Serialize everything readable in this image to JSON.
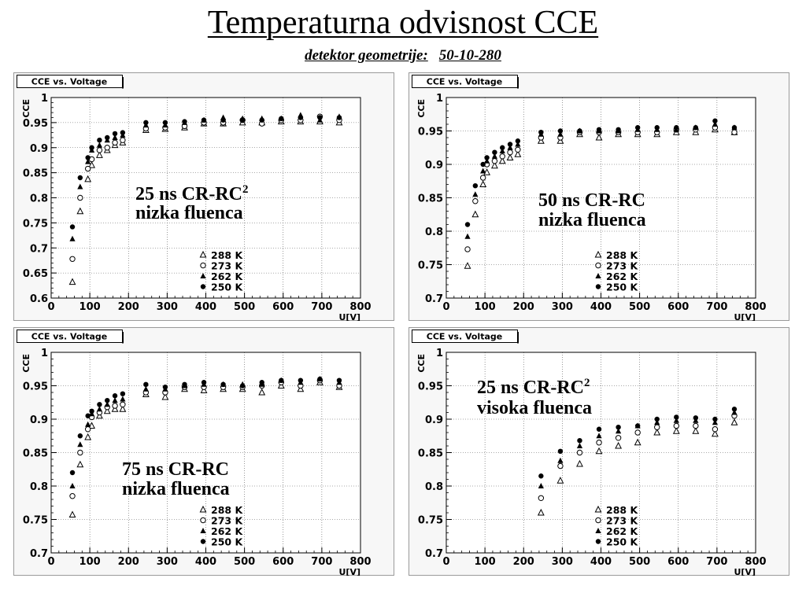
{
  "header": {
    "title": "Temperaturna odvisnost CCE",
    "subtitle_label": "detektor geometrije:",
    "subtitle_value": "50-10-280"
  },
  "chart_data": [
    {
      "type": "scatter",
      "title": "CCE vs. Voltage",
      "xlabel": "U[V]",
      "ylabel": "CCE",
      "xlim": [
        0,
        800
      ],
      "ylim": [
        0.6,
        1
      ],
      "xticks": [
        0,
        100,
        200,
        300,
        400,
        500,
        600,
        700,
        800
      ],
      "xtick_labels": [
        "0",
        "100",
        "200",
        "300",
        "400",
        "500",
        "600",
        "700",
        "800"
      ],
      "yticks": [
        0.6,
        0.65,
        0.7,
        0.75,
        0.8,
        0.85,
        0.9,
        0.95,
        1
      ],
      "ytick_labels": [
        "0.6",
        "0.65",
        "0.7",
        "0.75",
        "0.8",
        "0.85",
        "0.9",
        "0.95",
        "1"
      ],
      "grid": true,
      "legend_placement": "center-bottom",
      "annotation": [
        "25 ns CR-RC",
        "nizka fluenca"
      ],
      "annotation_sup": "2",
      "series": [
        {
          "name": "288 K",
          "marker": "triangle-open",
          "x": [
            55,
            75,
            95,
            105,
            125,
            145,
            165,
            185,
            245,
            295,
            345,
            395,
            445,
            495,
            545,
            595,
            645,
            695,
            745
          ],
          "y": [
            0.632,
            0.773,
            0.837,
            0.865,
            0.885,
            0.895,
            0.905,
            0.91,
            0.935,
            0.937,
            0.94,
            0.948,
            0.948,
            0.95,
            0.95,
            0.952,
            0.952,
            0.952,
            0.95
          ]
        },
        {
          "name": "273 K",
          "marker": "circle-open",
          "x": [
            55,
            75,
            95,
            105,
            125,
            145,
            165,
            185,
            245,
            295,
            345,
            395,
            445,
            495,
            545,
            595,
            645,
            695,
            745
          ],
          "y": [
            0.678,
            0.8,
            0.858,
            0.877,
            0.895,
            0.9,
            0.91,
            0.915,
            0.938,
            0.94,
            0.943,
            0.95,
            0.95,
            0.955,
            0.948,
            0.955,
            0.955,
            0.962,
            0.955
          ]
        },
        {
          "name": "262 K",
          "marker": "triangle-filled",
          "x": [
            55,
            75,
            95,
            105,
            125,
            145,
            165,
            185,
            245,
            295,
            345,
            395,
            445,
            495,
            545,
            595,
            645,
            695,
            745
          ],
          "y": [
            0.718,
            0.822,
            0.872,
            0.895,
            0.905,
            0.915,
            0.92,
            0.925,
            0.945,
            0.945,
            0.95,
            0.955,
            0.96,
            0.958,
            0.958,
            0.958,
            0.965,
            0.955,
            0.962
          ]
        },
        {
          "name": "250 K",
          "marker": "circle-filled",
          "x": [
            55,
            75,
            95,
            105,
            125,
            145,
            165,
            185,
            245,
            295,
            345,
            395,
            445,
            495,
            545,
            595,
            645,
            695,
            745
          ],
          "y": [
            0.742,
            0.84,
            0.88,
            0.9,
            0.915,
            0.92,
            0.928,
            0.93,
            0.95,
            0.95,
            0.952,
            0.955,
            0.955,
            0.955,
            0.955,
            0.958,
            0.96,
            0.96,
            0.96
          ]
        }
      ]
    },
    {
      "type": "scatter",
      "title": "CCE vs. Voltage",
      "xlabel": "U[V]",
      "ylabel": "CCE",
      "xlim": [
        0,
        800
      ],
      "ylim": [
        0.7,
        1
      ],
      "xticks": [
        0,
        100,
        200,
        300,
        400,
        500,
        600,
        700,
        800
      ],
      "xtick_labels": [
        "0",
        "100",
        "200",
        "300",
        "400",
        "500",
        "600",
        "700",
        "800"
      ],
      "yticks": [
        0.7,
        0.75,
        0.8,
        0.85,
        0.9,
        0.95,
        1
      ],
      "ytick_labels": [
        "0.7",
        "0.75",
        "0.8",
        "0.85",
        "0.9",
        "0.95",
        "1"
      ],
      "grid": true,
      "legend_placement": "center-bottom",
      "annotation": [
        "50 ns CR-RC",
        "nizka fluenca"
      ],
      "annotation_sup": "",
      "series": [
        {
          "name": "288 K",
          "marker": "triangle-open",
          "x": [
            55,
            75,
            95,
            105,
            125,
            145,
            165,
            185,
            245,
            295,
            345,
            395,
            445,
            495,
            545,
            595,
            645,
            695,
            745
          ],
          "y": [
            0.748,
            0.825,
            0.87,
            0.888,
            0.898,
            0.905,
            0.91,
            0.915,
            0.935,
            0.935,
            0.945,
            0.94,
            0.945,
            0.945,
            0.945,
            0.948,
            0.948,
            0.952,
            0.948
          ]
        },
        {
          "name": "273 K",
          "marker": "circle-open",
          "x": [
            55,
            75,
            95,
            105,
            125,
            145,
            165,
            185,
            245,
            295,
            345,
            395,
            445,
            495,
            545,
            595,
            645,
            695,
            745
          ],
          "y": [
            0.773,
            0.845,
            0.88,
            0.9,
            0.905,
            0.912,
            0.918,
            0.922,
            0.94,
            0.94,
            0.948,
            0.948,
            0.948,
            0.948,
            0.948,
            0.952,
            0.952,
            0.955,
            0.948
          ]
        },
        {
          "name": "262 K",
          "marker": "triangle-filled",
          "x": [
            55,
            75,
            95,
            105,
            125,
            145,
            165,
            185,
            245,
            295,
            345,
            395,
            445,
            495,
            545,
            595,
            645,
            695,
            745
          ],
          "y": [
            0.792,
            0.855,
            0.89,
            0.905,
            0.912,
            0.92,
            0.925,
            0.93,
            0.945,
            0.945,
            0.95,
            0.95,
            0.95,
            0.952,
            0.952,
            0.952,
            0.955,
            0.96,
            0.955
          ]
        },
        {
          "name": "250 K",
          "marker": "circle-filled",
          "x": [
            55,
            75,
            95,
            105,
            125,
            145,
            165,
            185,
            245,
            295,
            345,
            395,
            445,
            495,
            545,
            595,
            645,
            695,
            745
          ],
          "y": [
            0.81,
            0.868,
            0.9,
            0.91,
            0.918,
            0.925,
            0.93,
            0.935,
            0.948,
            0.95,
            0.95,
            0.952,
            0.952,
            0.955,
            0.955,
            0.955,
            0.955,
            0.965,
            0.955
          ]
        }
      ]
    },
    {
      "type": "scatter",
      "title": "CCE vs. Voltage",
      "xlabel": "U[V]",
      "ylabel": "CCE",
      "xlim": [
        0,
        800
      ],
      "ylim": [
        0.7,
        1
      ],
      "xticks": [
        0,
        100,
        200,
        300,
        400,
        500,
        600,
        700,
        800
      ],
      "xtick_labels": [
        "0",
        "100",
        "200",
        "300",
        "400",
        "500",
        "600",
        "700",
        "800"
      ],
      "yticks": [
        0.7,
        0.75,
        0.8,
        0.85,
        0.9,
        0.95,
        1
      ],
      "ytick_labels": [
        "0.7",
        "0.75",
        "0.8",
        "0.85",
        "0.9",
        "0.95",
        "1"
      ],
      "grid": true,
      "legend_placement": "center-bottom",
      "annotation": [
        "75 ns CR-RC",
        "nizka fluenca"
      ],
      "annotation_sup": "",
      "series": [
        {
          "name": "288 K",
          "marker": "triangle-open",
          "x": [
            55,
            75,
            95,
            105,
            125,
            145,
            165,
            185,
            245,
            295,
            345,
            395,
            445,
            495,
            545,
            595,
            645,
            695,
            745
          ],
          "y": [
            0.757,
            0.832,
            0.873,
            0.89,
            0.905,
            0.912,
            0.915,
            0.915,
            0.937,
            0.933,
            0.945,
            0.943,
            0.945,
            0.945,
            0.94,
            0.95,
            0.945,
            0.955,
            0.948
          ]
        },
        {
          "name": "273 K",
          "marker": "circle-open",
          "x": [
            55,
            75,
            95,
            105,
            125,
            145,
            165,
            185,
            245,
            295,
            345,
            395,
            445,
            495,
            545,
            595,
            645,
            695,
            745
          ],
          "y": [
            0.785,
            0.85,
            0.885,
            0.903,
            0.91,
            0.918,
            0.92,
            0.922,
            0.94,
            0.94,
            0.948,
            0.948,
            0.948,
            0.948,
            0.95,
            0.955,
            0.95,
            0.958,
            0.95
          ]
        },
        {
          "name": "262 K",
          "marker": "triangle-filled",
          "x": [
            55,
            75,
            95,
            105,
            125,
            145,
            165,
            185,
            245,
            295,
            345,
            395,
            445,
            495,
            545,
            595,
            645,
            695,
            745
          ],
          "y": [
            0.8,
            0.862,
            0.892,
            0.908,
            0.915,
            0.922,
            0.928,
            0.93,
            0.945,
            0.945,
            0.95,
            0.952,
            0.952,
            0.952,
            0.952,
            0.958,
            0.955,
            0.96,
            0.955
          ]
        },
        {
          "name": "250 K",
          "marker": "circle-filled",
          "x": [
            55,
            75,
            95,
            105,
            125,
            145,
            165,
            185,
            245,
            295,
            345,
            395,
            445,
            495,
            545,
            595,
            645,
            695,
            745
          ],
          "y": [
            0.82,
            0.875,
            0.905,
            0.912,
            0.922,
            0.928,
            0.935,
            0.938,
            0.952,
            0.948,
            0.952,
            0.955,
            0.952,
            0.95,
            0.955,
            0.958,
            0.958,
            0.96,
            0.958
          ]
        }
      ]
    },
    {
      "type": "scatter",
      "title": "CCE vs. Voltage",
      "xlabel": "U[V]",
      "ylabel": "CCE",
      "xlim": [
        0,
        800
      ],
      "ylim": [
        0.7,
        1
      ],
      "xticks": [
        0,
        100,
        200,
        300,
        400,
        500,
        600,
        700,
        800
      ],
      "xtick_labels": [
        "0",
        "100",
        "200",
        "300",
        "400",
        "500",
        "600",
        "700",
        "800"
      ],
      "yticks": [
        0.7,
        0.75,
        0.8,
        0.85,
        0.9,
        0.95,
        1
      ],
      "ytick_labels": [
        "0.7",
        "0.75",
        "0.8",
        "0.85",
        "0.9",
        "0.95",
        "1"
      ],
      "grid": true,
      "legend_placement": "center-bottom",
      "annotation": [
        "25 ns CR-RC",
        "visoka fluenca"
      ],
      "annotation_sup": "2",
      "series": [
        {
          "name": "288 K",
          "marker": "triangle-open",
          "x": [
            245,
            295,
            345,
            395,
            445,
            495,
            545,
            595,
            645,
            695,
            745
          ],
          "y": [
            0.76,
            0.808,
            0.833,
            0.852,
            0.86,
            0.865,
            0.88,
            0.882,
            0.882,
            0.878,
            0.895
          ]
        },
        {
          "name": "273 K",
          "marker": "circle-open",
          "x": [
            245,
            295,
            345,
            395,
            445,
            495,
            545,
            595,
            645,
            695,
            745
          ],
          "y": [
            0.782,
            0.83,
            0.85,
            0.865,
            0.872,
            0.88,
            0.888,
            0.89,
            0.89,
            0.885,
            0.905
          ]
        },
        {
          "name": "262 K",
          "marker": "triangle-filled",
          "x": [
            245,
            295,
            345,
            395,
            445,
            495,
            545,
            595,
            645,
            695,
            745
          ],
          "y": [
            0.8,
            0.838,
            0.86,
            0.875,
            0.882,
            0.89,
            0.895,
            0.898,
            0.898,
            0.895,
            0.91
          ]
        },
        {
          "name": "250 K",
          "marker": "circle-filled",
          "x": [
            245,
            295,
            345,
            395,
            445,
            495,
            545,
            595,
            645,
            695,
            745
          ],
          "y": [
            0.815,
            0.852,
            0.868,
            0.885,
            0.888,
            0.89,
            0.9,
            0.903,
            0.902,
            0.9,
            0.915
          ]
        }
      ]
    }
  ]
}
